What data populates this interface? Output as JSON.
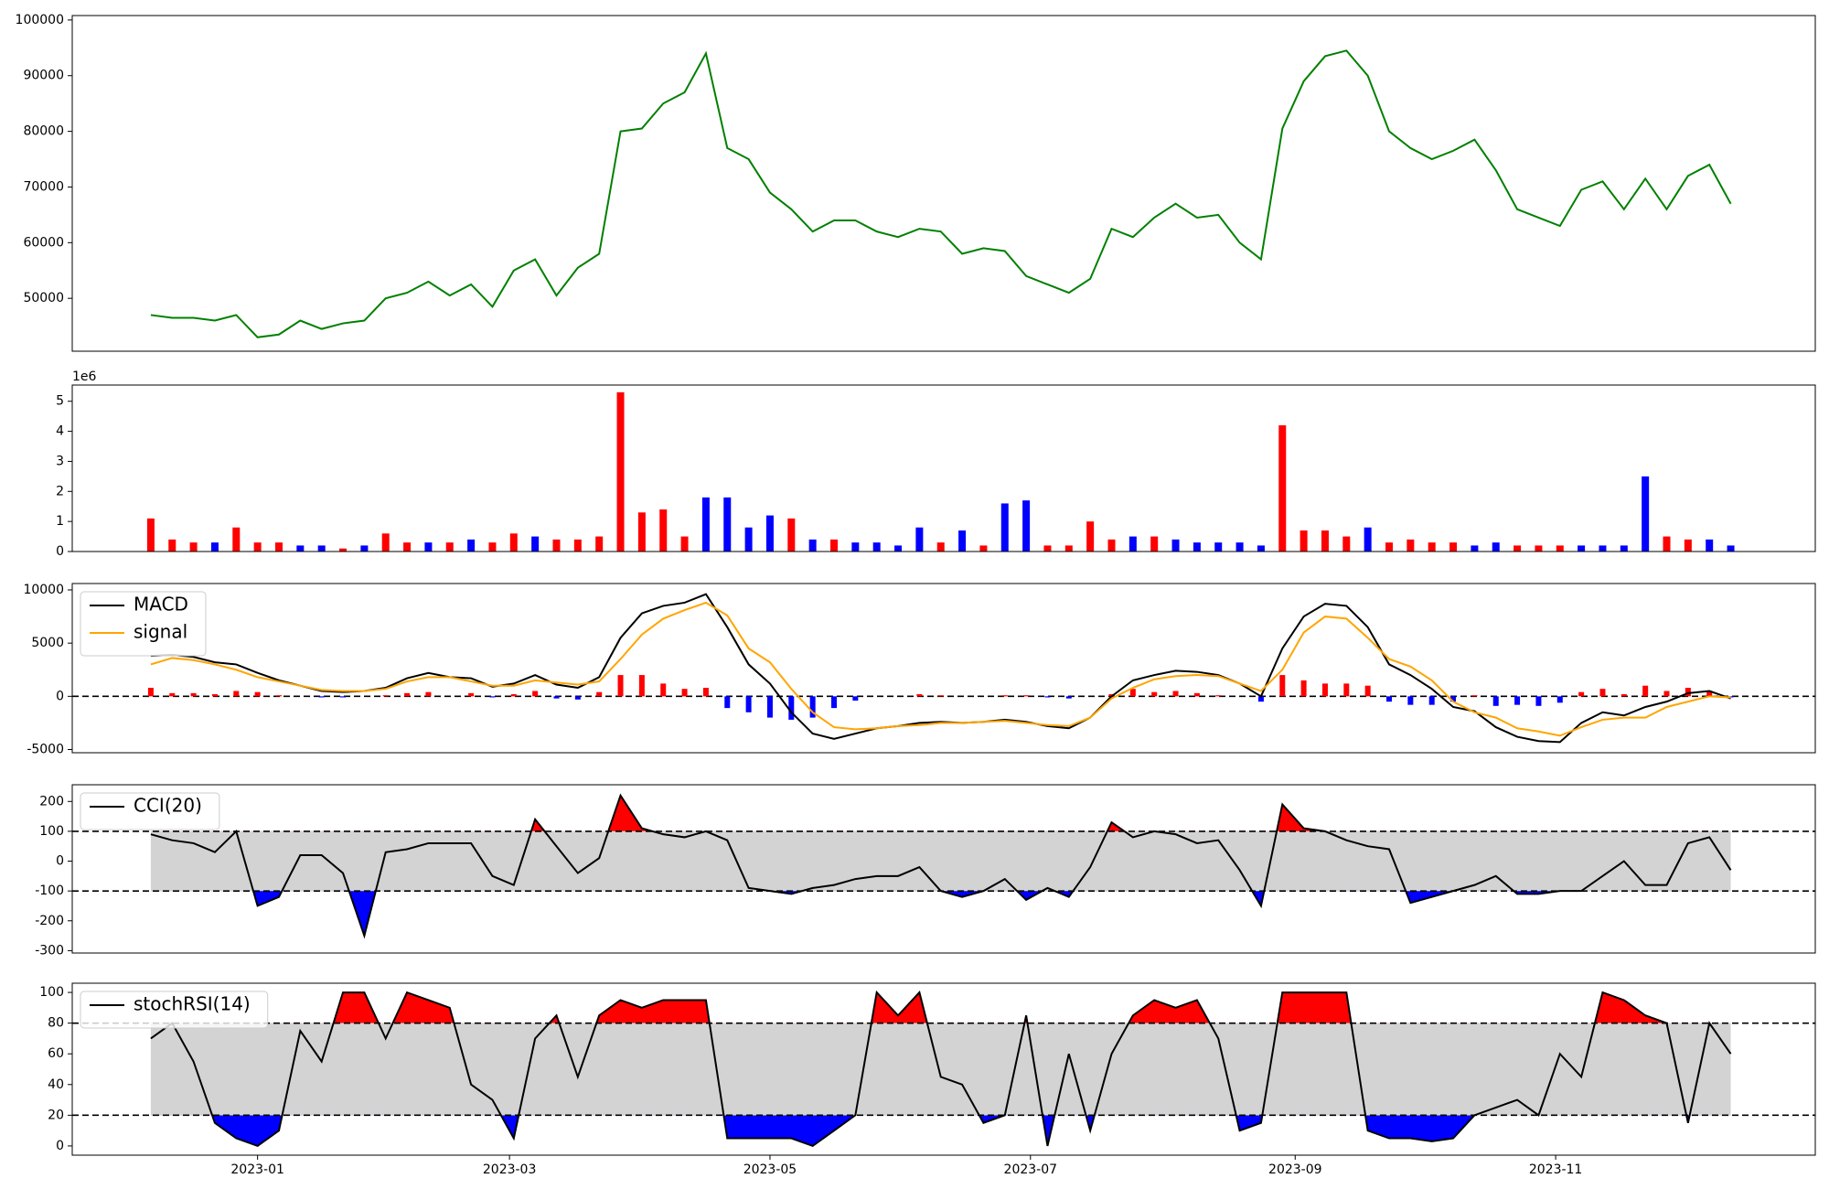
{
  "chart_data": [
    {
      "type": "line",
      "xlim": [
        -43.4,
        364.8
      ],
      "ylim": [
        40500,
        100800
      ],
      "yticks": [
        50000,
        60000,
        70000,
        80000,
        90000,
        100000
      ],
      "x": [
        -25,
        -20,
        -15,
        -10,
        -5,
        0,
        5,
        10,
        15,
        20,
        25,
        30,
        35,
        40,
        45,
        50,
        55,
        60,
        65,
        70,
        75,
        80,
        85,
        90,
        95,
        100,
        105,
        110,
        115,
        120,
        125,
        130,
        135,
        140,
        145,
        150,
        155,
        160,
        165,
        170,
        175,
        180,
        185,
        190,
        195,
        200,
        205,
        210,
        215,
        220,
        225,
        230,
        235,
        240,
        245,
        250,
        255,
        260,
        265,
        270,
        275,
        280,
        285,
        290,
        295,
        300,
        305,
        310,
        315,
        320,
        325,
        330,
        335,
        340,
        345
      ],
      "series": [
        {
          "color": "green",
          "values": [
            47000,
            46500,
            46500,
            46000,
            47000,
            43000,
            43500,
            46000,
            44500,
            45500,
            46000,
            50000,
            51000,
            53000,
            50500,
            52500,
            48500,
            55000,
            57000,
            50500,
            55500,
            58000,
            80000,
            80500,
            85000,
            87000,
            94000,
            77000,
            75000,
            69000,
            66000,
            62000,
            64000,
            64000,
            62000,
            61000,
            62500,
            62000,
            58000,
            59000,
            58500,
            54000,
            52500,
            51000,
            53500,
            62500,
            61000,
            64500,
            67000,
            64500,
            65000,
            60000,
            57000,
            80500,
            89000,
            93500,
            94500,
            90000,
            80000,
            77000,
            75000,
            76500,
            78500,
            73000,
            66000,
            64500,
            63000,
            69500,
            71000,
            66000,
            71500,
            66000,
            72000,
            74000,
            67000
          ]
        }
      ]
    },
    {
      "type": "bar",
      "xlim": [
        -43.4,
        364.8
      ],
      "ylim": [
        0,
        5.54
      ],
      "yticks": [
        0,
        1,
        2,
        3,
        4,
        5
      ],
      "offset_label": "1e6",
      "x": [
        -25,
        -20,
        -15,
        -10,
        -5,
        0,
        5,
        10,
        15,
        20,
        25,
        30,
        35,
        40,
        45,
        50,
        55,
        60,
        65,
        70,
        75,
        80,
        85,
        90,
        95,
        100,
        105,
        110,
        115,
        120,
        125,
        130,
        135,
        140,
        145,
        150,
        155,
        160,
        165,
        170,
        175,
        180,
        185,
        190,
        195,
        200,
        205,
        210,
        215,
        220,
        225,
        230,
        235,
        240,
        245,
        250,
        255,
        260,
        265,
        270,
        275,
        280,
        285,
        290,
        295,
        300,
        305,
        310,
        315,
        320,
        325,
        330,
        335,
        340,
        345
      ],
      "values": [
        1.1,
        0.4,
        0.3,
        0.3,
        0.8,
        0.3,
        0.3,
        0.2,
        0.2,
        0.1,
        0.2,
        0.6,
        0.3,
        0.3,
        0.3,
        0.4,
        0.3,
        0.6,
        0.5,
        0.4,
        0.4,
        0.5,
        5.3,
        1.3,
        1.4,
        0.5,
        1.8,
        1.8,
        0.8,
        1.2,
        1.1,
        0.4,
        0.4,
        0.3,
        0.3,
        0.2,
        0.8,
        0.3,
        0.7,
        0.2,
        1.6,
        1.7,
        0.2,
        0.2,
        1.0,
        0.4,
        0.5,
        0.5,
        0.4,
        0.3,
        0.3,
        0.3,
        0.2,
        4.2,
        0.7,
        0.7,
        0.5,
        0.8,
        0.3,
        0.4,
        0.3,
        0.3,
        0.2,
        0.3,
        0.2,
        0.2,
        0.2,
        0.2,
        0.2,
        0.2,
        2.5,
        0.5,
        0.4,
        0.4,
        0.2
      ],
      "colors": [
        "red",
        "red",
        "red",
        "blue",
        "red",
        "red",
        "red",
        "blue",
        "blue",
        "red",
        "blue",
        "red",
        "red",
        "blue",
        "red",
        "blue",
        "red",
        "red",
        "blue",
        "red",
        "red",
        "red",
        "red",
        "red",
        "red",
        "red",
        "blue",
        "blue",
        "blue",
        "blue",
        "red",
        "blue",
        "red",
        "blue",
        "blue",
        "blue",
        "blue",
        "red",
        "blue",
        "red",
        "blue",
        "blue",
        "red",
        "red",
        "red",
        "red",
        "blue",
        "red",
        "blue",
        "blue",
        "blue",
        "blue",
        "blue",
        "red",
        "red",
        "red",
        "red",
        "blue",
        "red",
        "red",
        "red",
        "red",
        "blue",
        "blue",
        "red",
        "red",
        "red",
        "blue",
        "blue",
        "blue",
        "blue",
        "red",
        "red",
        "blue",
        "blue"
      ]
    },
    {
      "type": "line",
      "xlim": [
        -43.4,
        364.8
      ],
      "ylim": [
        -5300,
        10600
      ],
      "yticks": [
        -5000,
        0,
        5000,
        10000
      ],
      "hlines": [
        0
      ],
      "legend": "upper left",
      "x": [
        -25,
        -20,
        -15,
        -10,
        -5,
        0,
        5,
        10,
        15,
        20,
        25,
        30,
        35,
        40,
        45,
        50,
        55,
        60,
        65,
        70,
        75,
        80,
        85,
        90,
        95,
        100,
        105,
        110,
        115,
        120,
        125,
        130,
        135,
        140,
        145,
        150,
        155,
        160,
        165,
        170,
        175,
        180,
        185,
        190,
        195,
        200,
        205,
        210,
        215,
        220,
        225,
        230,
        235,
        240,
        245,
        250,
        255,
        260,
        265,
        270,
        275,
        280,
        285,
        290,
        295,
        300,
        305,
        310,
        315,
        320,
        325,
        330,
        335,
        340,
        345
      ],
      "histogram": {
        "positive_color": "red",
        "negative_color": "blue",
        "values": [
          800,
          300,
          300,
          200,
          500,
          400,
          100,
          0,
          -100,
          -100,
          0,
          100,
          300,
          400,
          0,
          300,
          -100,
          200,
          500,
          -200,
          -300,
          400,
          2000,
          2000,
          1200,
          700,
          800,
          -1100,
          -1500,
          -2000,
          -2200,
          -2000,
          -1100,
          -400,
          0,
          0,
          200,
          100,
          0,
          0,
          100,
          100,
          -100,
          -200,
          0,
          200,
          700,
          400,
          500,
          300,
          100,
          0,
          -500,
          2000,
          1500,
          1200,
          1200,
          1000,
          -500,
          -800,
          -800,
          -500,
          100,
          -900,
          -800,
          -900,
          -600,
          400,
          700,
          200,
          1000,
          500,
          800,
          500,
          -100
        ]
      },
      "series": [
        {
          "name": "MACD",
          "color": "black",
          "values": [
            3800,
            3900,
            3700,
            3200,
            3000,
            2200,
            1500,
            1000,
            500,
            400,
            500,
            800,
            1700,
            2200,
            1800,
            1700,
            900,
            1200,
            2000,
            1100,
            800,
            1800,
            5500,
            7800,
            8500,
            8800,
            9600,
            6500,
            3000,
            1200,
            -1500,
            -3500,
            -4000,
            -3500,
            -3000,
            -2800,
            -2500,
            -2400,
            -2500,
            -2400,
            -2200,
            -2400,
            -2800,
            -3000,
            -2000,
            0,
            1500,
            2000,
            2400,
            2300,
            2000,
            1200,
            0,
            4500,
            7500,
            8700,
            8500,
            6500,
            3000,
            2000,
            700,
            -1000,
            -1400,
            -2900,
            -3800,
            -4200,
            -4300,
            -2500,
            -1500,
            -1800,
            -1000,
            -500,
            300,
            500,
            -200
          ]
        },
        {
          "name": "signal",
          "color": "orange",
          "values": [
            3000,
            3600,
            3400,
            3000,
            2500,
            1800,
            1400,
            1000,
            600,
            500,
            500,
            700,
            1400,
            1800,
            1800,
            1400,
            1000,
            1000,
            1500,
            1300,
            1100,
            1400,
            3500,
            5800,
            7300,
            8100,
            8800,
            7600,
            4500,
            3200,
            700,
            -1500,
            -2900,
            -3100,
            -3000,
            -2800,
            -2700,
            -2500,
            -2500,
            -2400,
            -2300,
            -2500,
            -2700,
            -2800,
            -2000,
            -200,
            800,
            1600,
            1900,
            2000,
            1900,
            1200,
            500,
            2500,
            6000,
            7500,
            7300,
            5500,
            3500,
            2800,
            1500,
            -500,
            -1500,
            -2000,
            -3000,
            -3300,
            -3700,
            -2900,
            -2200,
            -2000,
            -2000,
            -1000,
            -500,
            0,
            -100
          ]
        }
      ]
    },
    {
      "type": "line",
      "xlim": [
        -43.4,
        364.8
      ],
      "ylim": [
        -308,
        256
      ],
      "yticks": [
        -300,
        -200,
        -100,
        0,
        100,
        200
      ],
      "legend": "upper left",
      "band": {
        "lower": -100,
        "upper": 100,
        "color": "lightgray",
        "above_color": "red",
        "below_color": "blue"
      },
      "x": [
        -25,
        -20,
        -15,
        -10,
        -5,
        0,
        5,
        10,
        15,
        20,
        25,
        30,
        35,
        40,
        45,
        50,
        55,
        60,
        65,
        70,
        75,
        80,
        85,
        90,
        95,
        100,
        105,
        110,
        115,
        120,
        125,
        130,
        135,
        140,
        145,
        150,
        155,
        160,
        165,
        170,
        175,
        180,
        185,
        190,
        195,
        200,
        205,
        210,
        215,
        220,
        225,
        230,
        235,
        240,
        245,
        250,
        255,
        260,
        265,
        270,
        275,
        280,
        285,
        290,
        295,
        300,
        305,
        310,
        315,
        320,
        325,
        330,
        335,
        340,
        345
      ],
      "series": [
        {
          "name": "CCI(20)",
          "color": "black",
          "values": [
            90,
            70,
            60,
            30,
            100,
            -150,
            -120,
            20,
            20,
            -40,
            -250,
            30,
            40,
            60,
            60,
            60,
            -50,
            -80,
            140,
            50,
            -40,
            10,
            220,
            110,
            90,
            80,
            100,
            70,
            -90,
            -100,
            -110,
            -90,
            -80,
            -60,
            -50,
            -50,
            -20,
            -100,
            -120,
            -100,
            -60,
            -130,
            -90,
            -120,
            -20,
            130,
            80,
            100,
            90,
            60,
            70,
            -30,
            -150,
            190,
            110,
            100,
            70,
            50,
            40,
            -140,
            -120,
            -100,
            -80,
            -50,
            -110,
            -110,
            -100,
            -100,
            -50,
            0,
            -80,
            -80,
            60,
            80,
            -30
          ]
        }
      ]
    },
    {
      "type": "line",
      "xlim": [
        -43.4,
        364.8
      ],
      "ylim": [
        -6,
        106
      ],
      "yticks": [
        0,
        20,
        40,
        60,
        80,
        100
      ],
      "legend": "upper left",
      "xticks": [
        {
          "value": 0,
          "label": "2023-01"
        },
        {
          "value": 59,
          "label": "2023-03"
        },
        {
          "value": 120,
          "label": "2023-05"
        },
        {
          "value": 181,
          "label": "2023-07"
        },
        {
          "value": 243,
          "label": "2023-09"
        },
        {
          "value": 304,
          "label": "2023-11"
        }
      ],
      "band": {
        "lower": 20,
        "upper": 80,
        "color": "lightgray",
        "above_color": "red",
        "below_color": "blue"
      },
      "x": [
        -25,
        -20,
        -15,
        -10,
        -5,
        0,
        5,
        10,
        15,
        20,
        25,
        30,
        35,
        40,
        45,
        50,
        55,
        60,
        65,
        70,
        75,
        80,
        85,
        90,
        95,
        100,
        105,
        110,
        115,
        120,
        125,
        130,
        135,
        140,
        145,
        150,
        155,
        160,
        165,
        170,
        175,
        180,
        185,
        190,
        195,
        200,
        205,
        210,
        215,
        220,
        225,
        230,
        235,
        240,
        245,
        250,
        255,
        260,
        265,
        270,
        275,
        280,
        285,
        290,
        295,
        300,
        305,
        310,
        315,
        320,
        325,
        330,
        335,
        340,
        345
      ],
      "series": [
        {
          "name": "stochRSI(14)",
          "color": "black",
          "values": [
            70,
            80,
            55,
            15,
            5,
            0,
            10,
            75,
            55,
            100,
            100,
            70,
            100,
            95,
            90,
            40,
            30,
            5,
            70,
            85,
            45,
            85,
            95,
            90,
            95,
            95,
            95,
            5,
            5,
            5,
            5,
            0,
            10,
            20,
            100,
            85,
            100,
            45,
            40,
            15,
            20,
            85,
            0,
            60,
            10,
            60,
            85,
            95,
            90,
            95,
            70,
            10,
            15,
            100,
            100,
            100,
            100,
            10,
            5,
            5,
            3,
            5,
            20,
            25,
            30,
            20,
            60,
            45,
            100,
            95,
            85,
            80,
            15,
            80,
            60
          ]
        }
      ]
    }
  ]
}
